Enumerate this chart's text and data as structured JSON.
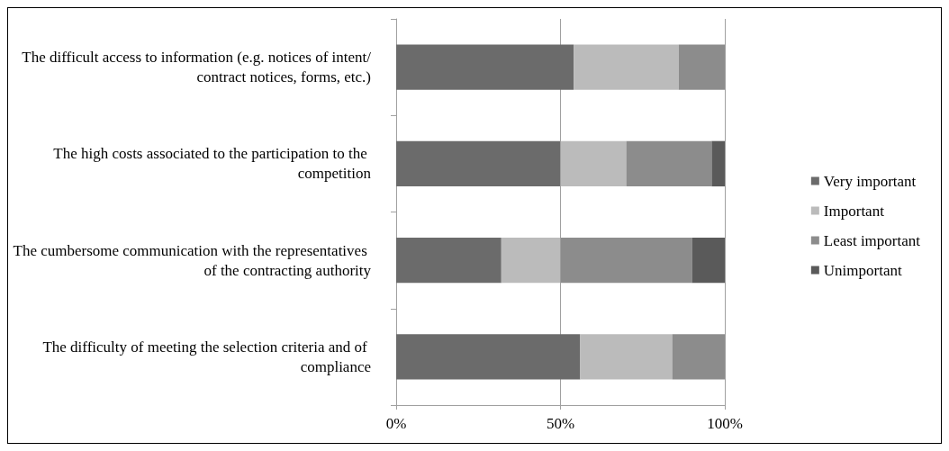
{
  "chart_data": {
    "type": "bar",
    "orientation": "horizontal",
    "stacked": true,
    "categories": [
      "The difficult access to information (e.g. notices of intent/contract notices, forms, etc.)",
      "The high costs associated to the participation to the competition",
      "The cumbersome communication with the representatives of the contracting authority",
      "The difficulty of meeting the selection criteria and of compliance"
    ],
    "series": [
      {
        "name": "Very important",
        "color": "#6b6b6b",
        "values": [
          54,
          50,
          32,
          56
        ]
      },
      {
        "name": "Important",
        "color": "#bbbbbb",
        "values": [
          32,
          20,
          18,
          28
        ]
      },
      {
        "name": "Least important",
        "color": "#8c8c8c",
        "values": [
          14,
          26,
          40,
          16
        ]
      },
      {
        "name": "Unimportant",
        "color": "#5a5a5a",
        "values": [
          0,
          4,
          10,
          0
        ]
      }
    ],
    "xlim": [
      0,
      100
    ],
    "xticks": [
      {
        "value": 0,
        "label": "0%"
      },
      {
        "value": 50,
        "label": "50%"
      },
      {
        "value": 100,
        "label": "100%"
      }
    ],
    "grid": "x",
    "legend": "right"
  }
}
